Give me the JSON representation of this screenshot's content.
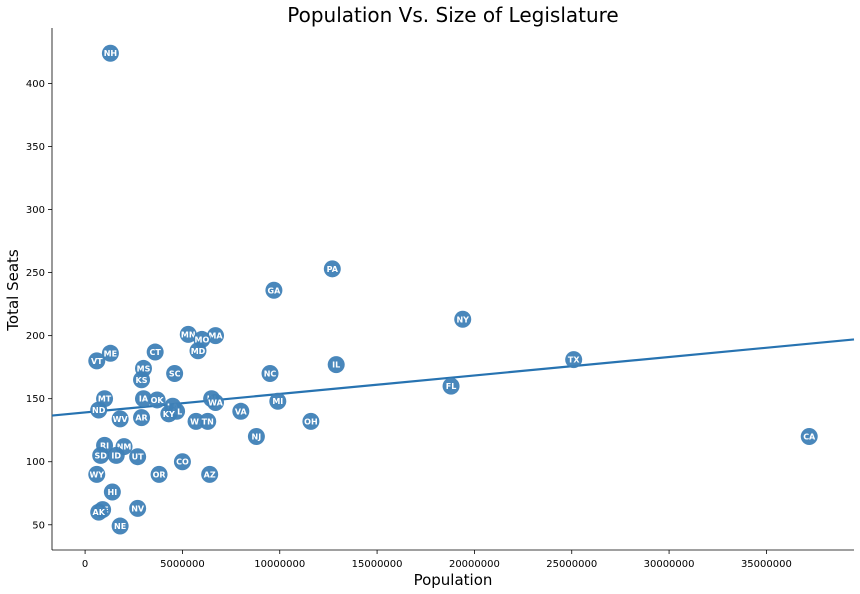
{
  "chart_data": {
    "type": "scatter",
    "title": "Population Vs. Size of Legislature",
    "xlabel": "Population",
    "ylabel": "Total Seats",
    "xlim": [
      -1700000,
      39500000
    ],
    "ylim": [
      30,
      444
    ],
    "xticks": [
      0,
      5000000,
      10000000,
      15000000,
      20000000,
      25000000,
      30000000,
      35000000
    ],
    "xtick_labels": [
      "0",
      "5000000",
      "10000000",
      "15000000",
      "20000000",
      "25000000",
      "30000000",
      "35000000"
    ],
    "yticks": [
      50,
      100,
      150,
      200,
      250,
      300,
      350,
      400
    ],
    "ytick_labels": [
      "50",
      "100",
      "150",
      "200",
      "250",
      "300",
      "350",
      "400"
    ],
    "grid": false,
    "marker_color": "#3f81b7",
    "line_color": "#2773b1",
    "trendline": {
      "x": [
        -1700000,
        39500000
      ],
      "y": [
        136.6,
        197.0
      ]
    },
    "points": [
      {
        "label": "NH",
        "x": 1300000,
        "y": 424
      },
      {
        "label": "PA",
        "x": 12700000,
        "y": 253
      },
      {
        "label": "GA",
        "x": 9700000,
        "y": 236
      },
      {
        "label": "NY",
        "x": 19400000,
        "y": 213
      },
      {
        "label": "MN",
        "x": 5300000,
        "y": 201
      },
      {
        "label": "MA",
        "x": 6700000,
        "y": 200
      },
      {
        "label": "MO",
        "x": 6000000,
        "y": 197
      },
      {
        "label": "MD",
        "x": 5800000,
        "y": 188
      },
      {
        "label": "CT",
        "x": 3600000,
        "y": 187
      },
      {
        "label": "ME",
        "x": 1300000,
        "y": 186
      },
      {
        "label": "TX",
        "x": 25100000,
        "y": 181
      },
      {
        "label": "VT",
        "x": 600000,
        "y": 180
      },
      {
        "label": "IL",
        "x": 12900000,
        "y": 177
      },
      {
        "label": "MS",
        "x": 3000000,
        "y": 174
      },
      {
        "label": "SC",
        "x": 4600000,
        "y": 170
      },
      {
        "label": "NC",
        "x": 9500000,
        "y": 170
      },
      {
        "label": "KS",
        "x": 2900000,
        "y": 165
      },
      {
        "label": "FL",
        "x": 18800000,
        "y": 160
      },
      {
        "label": "MT",
        "x": 1000000,
        "y": 150
      },
      {
        "label": "IA",
        "x": 3000000,
        "y": 150
      },
      {
        "label": "OK",
        "x": 3700000,
        "y": 149
      },
      {
        "label": "IN",
        "x": 6500000,
        "y": 150
      },
      {
        "label": "MI",
        "x": 9900000,
        "y": 148
      },
      {
        "label": "WA",
        "x": 6700000,
        "y": 147
      },
      {
        "label": "LA",
        "x": 4500000,
        "y": 144
      },
      {
        "label": "ND",
        "x": 700000,
        "y": 141
      },
      {
        "label": "AL",
        "x": 4700000,
        "y": 140
      },
      {
        "label": "VA",
        "x": 8000000,
        "y": 140
      },
      {
        "label": "KY",
        "x": 4300000,
        "y": 138
      },
      {
        "label": "AR",
        "x": 2900000,
        "y": 135
      },
      {
        "label": "WV",
        "x": 1800000,
        "y": 134
      },
      {
        "label": "WI",
        "x": 5700000,
        "y": 132
      },
      {
        "label": "TN",
        "x": 6300000,
        "y": 132
      },
      {
        "label": "OH",
        "x": 11600000,
        "y": 132
      },
      {
        "label": "NJ",
        "x": 8800000,
        "y": 120
      },
      {
        "label": "CA",
        "x": 37200000,
        "y": 120
      },
      {
        "label": "RI",
        "x": 1000000,
        "y": 113
      },
      {
        "label": "NM",
        "x": 2000000,
        "y": 112
      },
      {
        "label": "SD",
        "x": 800000,
        "y": 105
      },
      {
        "label": "ID",
        "x": 1600000,
        "y": 105
      },
      {
        "label": "UT",
        "x": 2700000,
        "y": 104
      },
      {
        "label": "CO",
        "x": 5000000,
        "y": 100
      },
      {
        "label": "WY",
        "x": 600000,
        "y": 90
      },
      {
        "label": "OR",
        "x": 3800000,
        "y": 90
      },
      {
        "label": "AZ",
        "x": 6400000,
        "y": 90
      },
      {
        "label": "HI",
        "x": 1400000,
        "y": 76
      },
      {
        "label": "NV",
        "x": 2700000,
        "y": 63
      },
      {
        "label": "DE",
        "x": 900000,
        "y": 62
      },
      {
        "label": "AK",
        "x": 700000,
        "y": 60
      },
      {
        "label": "NE",
        "x": 1800000,
        "y": 49
      }
    ]
  }
}
